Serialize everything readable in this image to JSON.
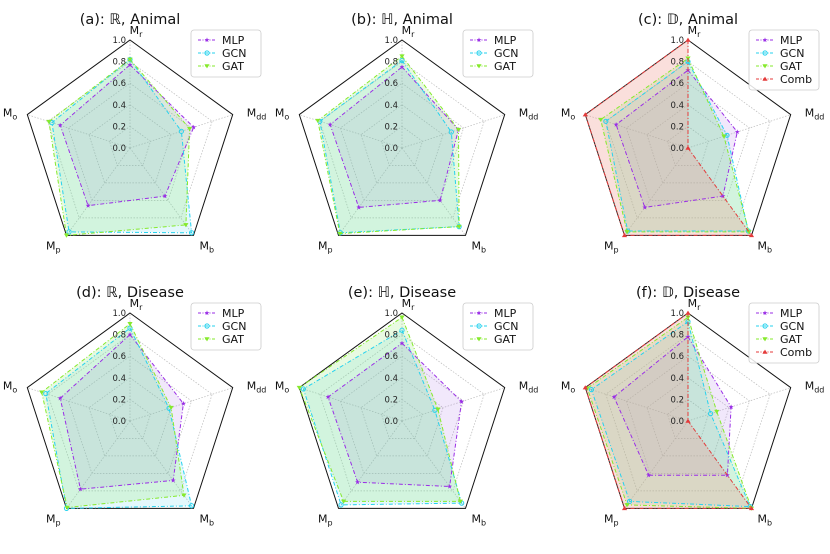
{
  "figure": {
    "axes": [
      "M_r",
      "M_dd",
      "M_b",
      "M_p",
      "M_o"
    ],
    "axis_labels": [
      {
        "base": "M",
        "sub": "r"
      },
      {
        "base": "M",
        "sub": "dd"
      },
      {
        "base": "M",
        "sub": "b"
      },
      {
        "base": "M",
        "sub": "p"
      },
      {
        "base": "M",
        "sub": "o"
      }
    ],
    "radial_ticks": [
      "0.0",
      "0.2",
      "0.4",
      "0.6",
      "0.8",
      "1.0"
    ],
    "colors": {
      "MLP": "#9a2ee6",
      "GCN": "#26d2ee",
      "GAT": "#86ea2c",
      "Comb": "#e43a3a"
    },
    "fills": {
      "MLP": "rgba(165,110,230,0.16)",
      "GCN": "rgba(90,210,235,0.16)",
      "GAT": "rgba(130,230,90,0.18)",
      "Comb": "rgba(240,150,140,0.30)"
    }
  },
  "chart_data": [
    {
      "type": "radar",
      "title": "(a): ℝ, Animal",
      "axes": [
        "M_r",
        "M_dd",
        "M_b",
        "M_p",
        "M_o"
      ],
      "rlim": [
        0,
        1
      ],
      "legend_position": "top-right",
      "series": [
        {
          "name": "MLP",
          "values": [
            0.77,
            0.62,
            0.55,
            0.66,
            0.68
          ]
        },
        {
          "name": "GCN",
          "values": [
            0.82,
            0.5,
            0.97,
            0.96,
            0.76
          ]
        },
        {
          "name": "GAT",
          "values": [
            0.82,
            0.58,
            0.88,
            1.0,
            0.79
          ]
        }
      ]
    },
    {
      "type": "radar",
      "title": "(b): ℍ, Animal",
      "axes": [
        "M_r",
        "M_dd",
        "M_b",
        "M_p",
        "M_o"
      ],
      "rlim": [
        0,
        1
      ],
      "legend_position": "top-right",
      "series": [
        {
          "name": "MLP",
          "values": [
            0.75,
            0.55,
            0.6,
            0.68,
            0.7
          ]
        },
        {
          "name": "GCN",
          "values": [
            0.81,
            0.48,
            0.9,
            0.97,
            0.8
          ]
        },
        {
          "name": "GAT",
          "values": [
            0.85,
            0.55,
            0.9,
            0.98,
            0.82
          ]
        }
      ]
    },
    {
      "type": "radar",
      "title": "(c): 𝔻, Animal",
      "axes": [
        "M_r",
        "M_dd",
        "M_b",
        "M_p",
        "M_o"
      ],
      "rlim": [
        0,
        1
      ],
      "legend_position": "top-right",
      "series": [
        {
          "name": "MLP",
          "values": [
            0.72,
            0.48,
            0.55,
            0.68,
            0.7
          ]
        },
        {
          "name": "GCN",
          "values": [
            0.8,
            0.38,
            0.95,
            0.95,
            0.8
          ]
        },
        {
          "name": "GAT",
          "values": [
            0.83,
            0.35,
            0.96,
            0.96,
            0.85
          ]
        },
        {
          "name": "Comb",
          "values": [
            1.0,
            0.0,
            1.0,
            1.0,
            1.0
          ]
        }
      ]
    },
    {
      "type": "radar",
      "title": "(d): ℝ, Disease",
      "axes": [
        "M_r",
        "M_dd",
        "M_b",
        "M_p",
        "M_o"
      ],
      "rlim": [
        0,
        1
      ],
      "legend_position": "top-right",
      "series": [
        {
          "name": "MLP",
          "values": [
            0.8,
            0.52,
            0.68,
            0.78,
            0.68
          ]
        },
        {
          "name": "GCN",
          "values": [
            0.86,
            0.38,
            0.97,
            1.0,
            0.82
          ]
        },
        {
          "name": "GAT",
          "values": [
            0.9,
            0.4,
            0.85,
            0.99,
            0.86
          ]
        }
      ]
    },
    {
      "type": "radar",
      "title": "(e): ℍ, Disease",
      "axes": [
        "M_r",
        "M_dd",
        "M_b",
        "M_p",
        "M_o"
      ],
      "rlim": [
        0,
        1
      ],
      "legend_position": "top-right",
      "series": [
        {
          "name": "MLP",
          "values": [
            0.72,
            0.58,
            0.75,
            0.7,
            0.72
          ]
        },
        {
          "name": "GCN",
          "values": [
            0.84,
            0.32,
            0.94,
            0.96,
            0.96
          ]
        },
        {
          "name": "GAT",
          "values": [
            0.96,
            0.35,
            0.92,
            0.92,
            1.0
          ]
        }
      ]
    },
    {
      "type": "radar",
      "title": "(f): 𝔻, Disease",
      "axes": [
        "M_r",
        "M_dd",
        "M_b",
        "M_p",
        "M_o"
      ],
      "rlim": [
        0,
        1
      ],
      "legend_position": "top-right",
      "series": [
        {
          "name": "MLP",
          "values": [
            0.78,
            0.42,
            0.62,
            0.62,
            0.72
          ]
        },
        {
          "name": "GCN",
          "values": [
            0.92,
            0.22,
            0.98,
            0.92,
            0.94
          ]
        },
        {
          "name": "GAT",
          "values": [
            0.96,
            0.28,
            1.0,
            0.96,
            0.98
          ]
        },
        {
          "name": "Comb",
          "values": [
            1.0,
            0.0,
            1.0,
            1.0,
            1.0
          ]
        }
      ]
    }
  ]
}
